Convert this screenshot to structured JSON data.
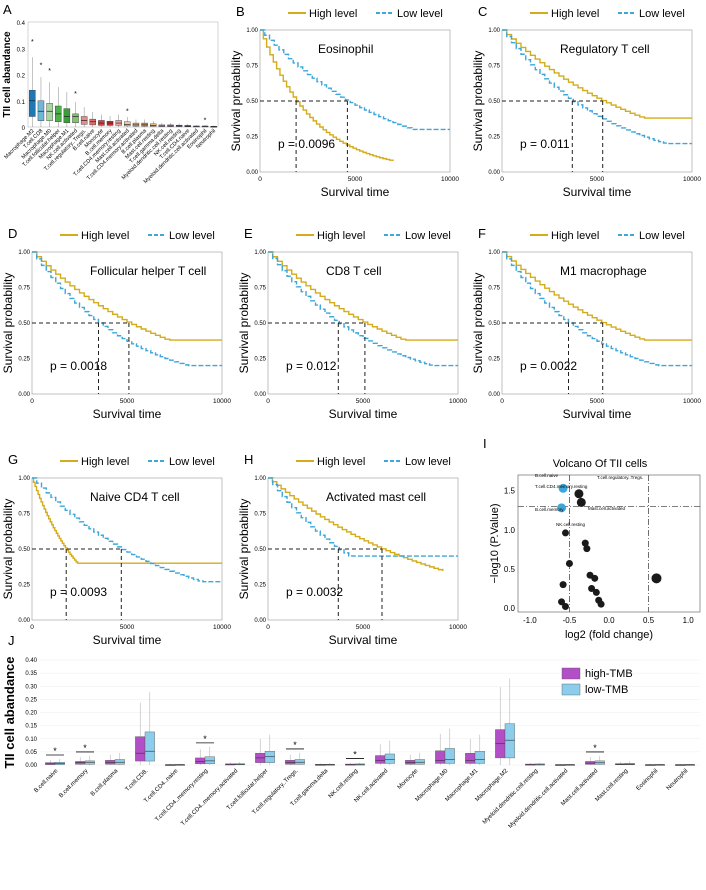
{
  "colors": {
    "high": "#D4AC1B",
    "low": "#3DA6DA",
    "hi_tmb": "#B34FC6",
    "lo_tmb": "#8BCDEB"
  },
  "panel_a": {
    "label": "A",
    "ylabel": "TII cell abandance",
    "categories": [
      "Macrophage.M2",
      "T.cell.CD8",
      "Macrophage.M0",
      "T.cell.follicular.helper",
      "Macrophage.M1",
      "NK.cell.activated",
      "T.cell.regulatory..Tregs.",
      "B.cell.naive",
      "Monocyte",
      "B.cell.memory",
      "T.cell.CD4.memory.resting",
      "Mast.cell.activated",
      "T.cell.CD4.memory.activated",
      "B.cell.plasma",
      "Mast.cell.resting",
      "T.cell.gamma.delta",
      "Myeloid.dendritic.cell.resting",
      "NK.cell.resting",
      "T.cell.CD4.naive",
      "Myeloid.dendritic.cell.activated",
      "Eosinophil",
      "Neutrophil"
    ],
    "ylim": [
      0,
      0.4
    ],
    "yticks": [
      "0",
      "0.1",
      "0.2",
      "0.3",
      "0.4"
    ]
  },
  "km": [
    {
      "label": "B",
      "title": "Eosinophil",
      "p": "p = 0.0096",
      "median_high": 1900,
      "median_low": 4600
    },
    {
      "label": "C",
      "title": "Regulatory T cell",
      "p": "p = 0.011",
      "median_high": 5300,
      "median_low": 3700
    },
    {
      "label": "D",
      "title": "Follicular helper T cell",
      "p": "p = 0.0018",
      "median_high": 5100,
      "median_low": 3500
    },
    {
      "label": "E",
      "title": "CD8 T cell",
      "p": "p = 0.012",
      "median_high": 5100,
      "median_low": 3700
    },
    {
      "label": "F",
      "title": "M1 macrophage",
      "p": "p = 0.0022",
      "median_high": 5300,
      "median_low": 3500
    },
    {
      "label": "G",
      "title": "Naive CD4 T cell",
      "p": "p = 0.0093",
      "median_high": 1800,
      "median_low": 4700
    },
    {
      "label": "H",
      "title": "Activated mast cell",
      "p": "p = 0.0032",
      "median_high": 6000,
      "median_low": 3700
    }
  ],
  "km_common": {
    "legend_high": "High level",
    "legend_low": "Low level",
    "xlabel": "Survival time",
    "ylabel": "Survival probability",
    "xticks": [
      "0",
      "5000",
      "10000"
    ],
    "yticks": [
      "0.00",
      "0.25",
      "0.50",
      "0.75",
      "1.00"
    ]
  },
  "volcano": {
    "label": "I",
    "title": "Volcano Of TII cells",
    "xlabel": "log2 (fold change)",
    "ylabel": "−log10 (P.Value)",
    "xticks": [
      "-1.0",
      "-0.5",
      "0.0",
      "0.5",
      "1.0"
    ],
    "yticks": [
      "0.0",
      "0.5",
      "1.0",
      "1.5"
    ],
    "points": [
      {
        "x": -0.58,
        "y": 1.53,
        "sig": true
      },
      {
        "x": -0.6,
        "y": 1.28,
        "sig": true
      },
      {
        "x": -0.38,
        "y": 1.46,
        "sig": false
      },
      {
        "x": -0.35,
        "y": 1.35,
        "sig": false
      },
      {
        "x": -0.5,
        "y": 0.57,
        "sig": false
      },
      {
        "x": -0.55,
        "y": 0.96,
        "sig": false
      },
      {
        "x": -0.3,
        "y": 0.83,
        "sig": false
      },
      {
        "x": -0.28,
        "y": 0.76,
        "sig": false
      },
      {
        "x": -0.58,
        "y": 0.3,
        "sig": false
      },
      {
        "x": -0.6,
        "y": 0.08,
        "sig": false
      },
      {
        "x": -0.55,
        "y": 0.02,
        "sig": false
      },
      {
        "x": -0.24,
        "y": 0.42,
        "sig": false
      },
      {
        "x": -0.18,
        "y": 0.38,
        "sig": false
      },
      {
        "x": -0.22,
        "y": 0.25,
        "sig": false
      },
      {
        "x": -0.16,
        "y": 0.2,
        "sig": false
      },
      {
        "x": -0.13,
        "y": 0.1,
        "sig": false
      },
      {
        "x": -0.1,
        "y": 0.05,
        "sig": false
      },
      {
        "x": 0.6,
        "y": 0.38,
        "sig": false
      }
    ],
    "annotations": [
      "B.cell.naive",
      "T.cell.regulatory..Tregs.",
      "T.cell.CD4.memory.resting",
      "B.cell.memory",
      "Mast.cell.activated",
      "NK.cell.resting"
    ],
    "threshold_y": 1.3,
    "threshold_x": [
      -0.5,
      0.5
    ]
  },
  "panel_j": {
    "label": "J",
    "ylabel": "TII cell abandance",
    "legend": [
      "high-TMB",
      "low-TMB"
    ],
    "yticks": [
      "0.00",
      "0.05",
      "0.10",
      "0.15",
      "0.20",
      "0.25",
      "0.30",
      "0.35",
      "0.40"
    ],
    "categories": [
      "B.cell.naive",
      "B.cell.memory",
      "B.cell.plasma",
      "T.cell.CD8.",
      "T.cell.CD4..naive",
      "T.cell.CD4..memory.resting",
      "T.cell.CD4..memory.activated",
      "T.cell.follicular.helper",
      "T.cell.regulatory..Tregs.",
      "T.cell.gamma.delta",
      "NK.cell.resting",
      "NK.cell.activated",
      "Monocyte",
      "Macrophage.M0",
      "Macrophage.M1",
      "Macrophage.M2",
      "Myeloid.dendritic.cell.resting",
      "Myeloid.dendritic.cell.activated",
      "Mast.cell.activated",
      "Mast.cell.resting",
      "Eosinophil",
      "Neutrophil"
    ],
    "star": "*",
    "significant": [
      0,
      1,
      5,
      8,
      10,
      18
    ]
  }
}
